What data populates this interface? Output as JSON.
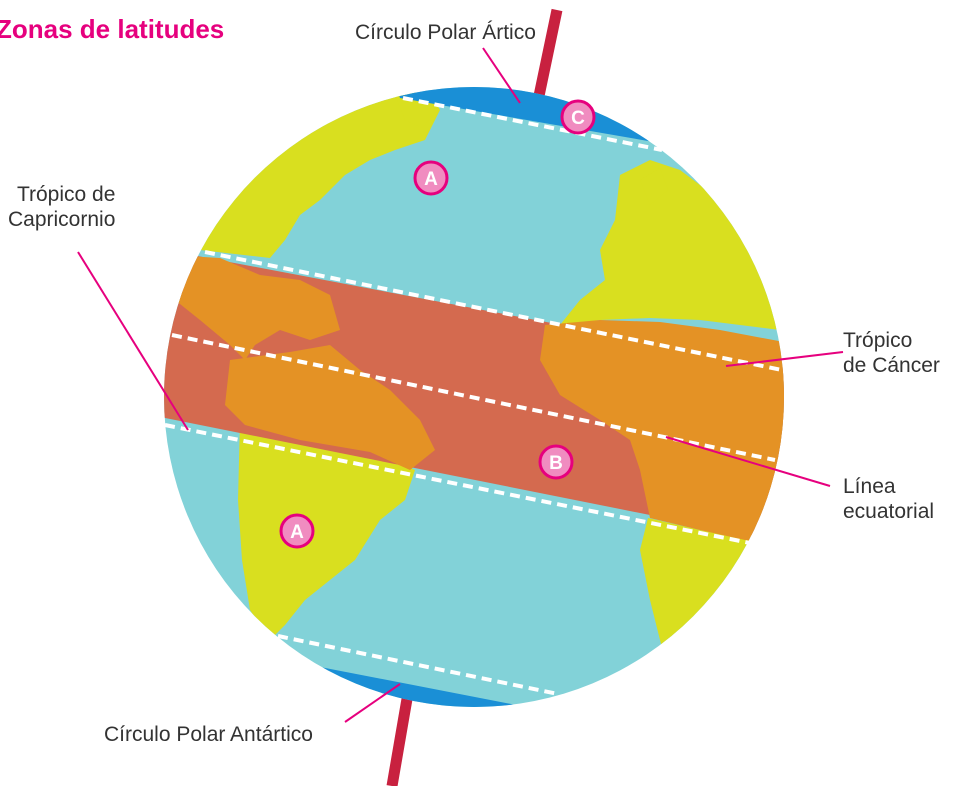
{
  "title": "Zonas de latitudes",
  "labels": {
    "arctic_circle": "Círculo Polar Ártico",
    "tropic_capricorn": [
      "Trópico de",
      "Capricornio"
    ],
    "tropic_cancer": [
      "Trópico",
      "de Cáncer"
    ],
    "equator": [
      "Línea",
      "ecuatorial"
    ],
    "antarctic_circle": "Círculo Polar Antártico"
  },
  "zone_markers": {
    "north_temperate": "A",
    "south_temperate": "A",
    "tropical": "B",
    "polar": "C"
  },
  "colors": {
    "title": "#e6007e",
    "polar_zone": "#1a8fd6",
    "temperate_zone_ocean": "#82d2d8",
    "temperate_zone_land": "#d9df1f",
    "tropical_zone_ocean": "#d46a4f",
    "tropical_zone_land": "#e49225",
    "axis": "#c8213f",
    "leader_line": "#e6007e",
    "marker": "#f08cc0"
  }
}
